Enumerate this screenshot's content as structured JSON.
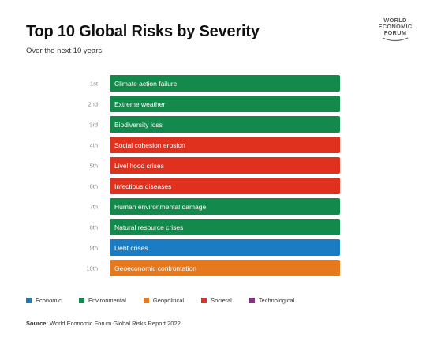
{
  "header": {
    "title": "Top 10 Global Risks by Severity",
    "subtitle": "Over the next 10 years"
  },
  "logo": {
    "lines": [
      "WORLD",
      "ECONOMIC",
      "FORUM"
    ]
  },
  "colors": {
    "Economic": "#1a7cc3",
    "Environmental": "#138a4b",
    "Geopolitical": "#e6781e",
    "Societal": "#e0301e",
    "Technological": "#8b2f8e"
  },
  "legend": [
    {
      "label": "Economic",
      "key": "Economic"
    },
    {
      "label": "Environmental",
      "key": "Environmental"
    },
    {
      "label": "Geopolitical",
      "key": "Geopolitical"
    },
    {
      "label": "Societal",
      "key": "Societal"
    },
    {
      "label": "Technological",
      "key": "Technological"
    }
  ],
  "chart_data": {
    "type": "table",
    "title": "Top 10 Global Risks by Severity",
    "subtitle": "Over the next 10 years",
    "rows": [
      {
        "rank": "1st",
        "risk": "Climate action failure",
        "category": "Environmental"
      },
      {
        "rank": "2nd",
        "risk": "Extreme weather",
        "category": "Environmental"
      },
      {
        "rank": "3rd",
        "risk": "Biodiversity loss",
        "category": "Environmental"
      },
      {
        "rank": "4th",
        "risk": "Social cohesion erosion",
        "category": "Societal"
      },
      {
        "rank": "5th",
        "risk": "Livelihood crises",
        "category": "Societal"
      },
      {
        "rank": "6th",
        "risk": "Infectious diseases",
        "category": "Societal"
      },
      {
        "rank": "7th",
        "risk": "Human environmental damage",
        "category": "Environmental"
      },
      {
        "rank": "8th",
        "risk": "Natural resource crises",
        "category": "Environmental"
      },
      {
        "rank": "9th",
        "risk": "Debt crises",
        "category": "Economic"
      },
      {
        "rank": "10th",
        "risk": "Geoeconomic confrontation",
        "category": "Geopolitical"
      }
    ]
  },
  "source": {
    "label": "Source:",
    "text": "World Economic Forum Global Risks Report 2022"
  }
}
